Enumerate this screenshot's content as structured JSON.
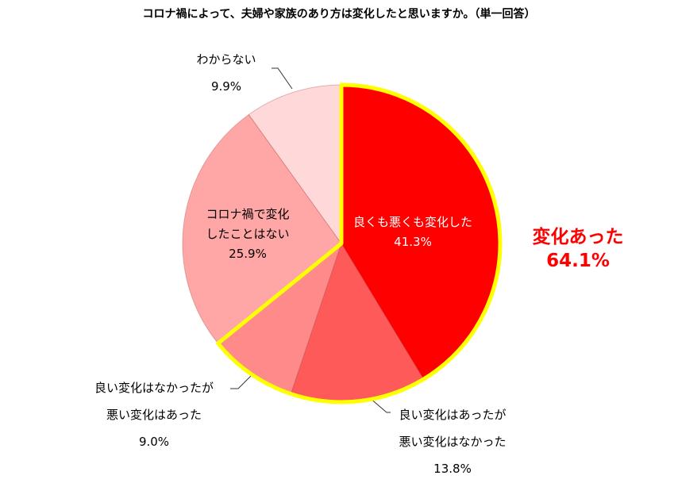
{
  "chart_data": {
    "type": "pie",
    "title": "コロナ禍によって、夫婦や家族のあり方は変化したと思いますか。（単一回答）",
    "slices": [
      {
        "label_lines": [
          "良くも悪くも変化した"
        ],
        "pct_text": "41.3%",
        "value": 41.3,
        "color": "#ff0000"
      },
      {
        "label_lines": [
          "良い変化はあったが",
          "悪い変化はなかった"
        ],
        "pct_text": "13.8%",
        "value": 13.8,
        "color": "#ff5a5a"
      },
      {
        "label_lines": [
          "良い変化はなかったが",
          "悪い変化はあった"
        ],
        "pct_text": "9.0%",
        "value": 9.0,
        "color": "#ff8a8a"
      },
      {
        "label_lines": [
          "コロナ禍で変化",
          "したことはない"
        ],
        "pct_text": "25.9%",
        "value": 25.9,
        "color": "#ffa6a6"
      },
      {
        "label_lines": [
          "わからない"
        ],
        "pct_text": "9.9%",
        "value": 9.9,
        "color": "#ffd9d9"
      }
    ],
    "highlight": {
      "line1": "変化あった",
      "line2": "64.1%",
      "value": 64.1,
      "color": "#ffff00",
      "text_color": "#ff0000"
    }
  }
}
